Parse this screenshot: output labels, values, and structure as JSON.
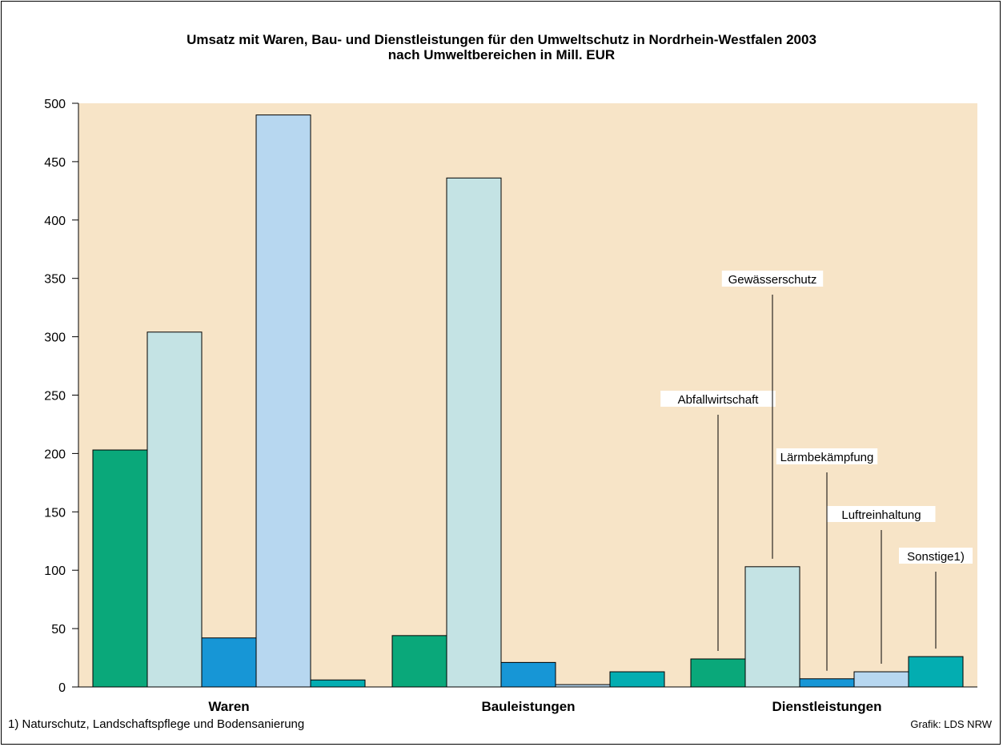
{
  "chart_data": {
    "type": "bar",
    "title_line1": "Umsatz mit Waren, Bau- und Dienstleistungen für den Umweltschutz in Nordrhein-Westfalen 2003",
    "title_line2": "nach Umweltbereichen in Mill. EUR",
    "categories": [
      "Waren",
      "Bauleistungen",
      "Dienstleistungen"
    ],
    "series": [
      {
        "name": "Abfallwirtschaft",
        "color": "#0aa87a",
        "values": [
          203,
          44,
          24
        ]
      },
      {
        "name": "Gewässerschutz",
        "color": "#c4e3e4",
        "values": [
          304,
          436,
          103
        ]
      },
      {
        "name": "Lärmbekämpfung",
        "color": "#1796d6",
        "values": [
          42,
          21,
          7
        ]
      },
      {
        "name": "Luftreinhaltung",
        "color": "#b7d7f0",
        "values": [
          490,
          2,
          13
        ]
      },
      {
        "name": "Sonstige1)",
        "color": "#03adb1",
        "values": [
          6,
          13,
          26
        ]
      }
    ],
    "yticks": [
      0,
      50,
      100,
      150,
      200,
      250,
      300,
      350,
      400,
      450,
      500
    ],
    "ylim": [
      0,
      500
    ],
    "plot_background": "#f7e4c7",
    "legend": "annotations on Dienstleistungen group",
    "grid": false
  },
  "footnote": "1) Naturschutz, Landschaftspflege und Bodensanierung",
  "credit": "Grafik: LDS NRW"
}
